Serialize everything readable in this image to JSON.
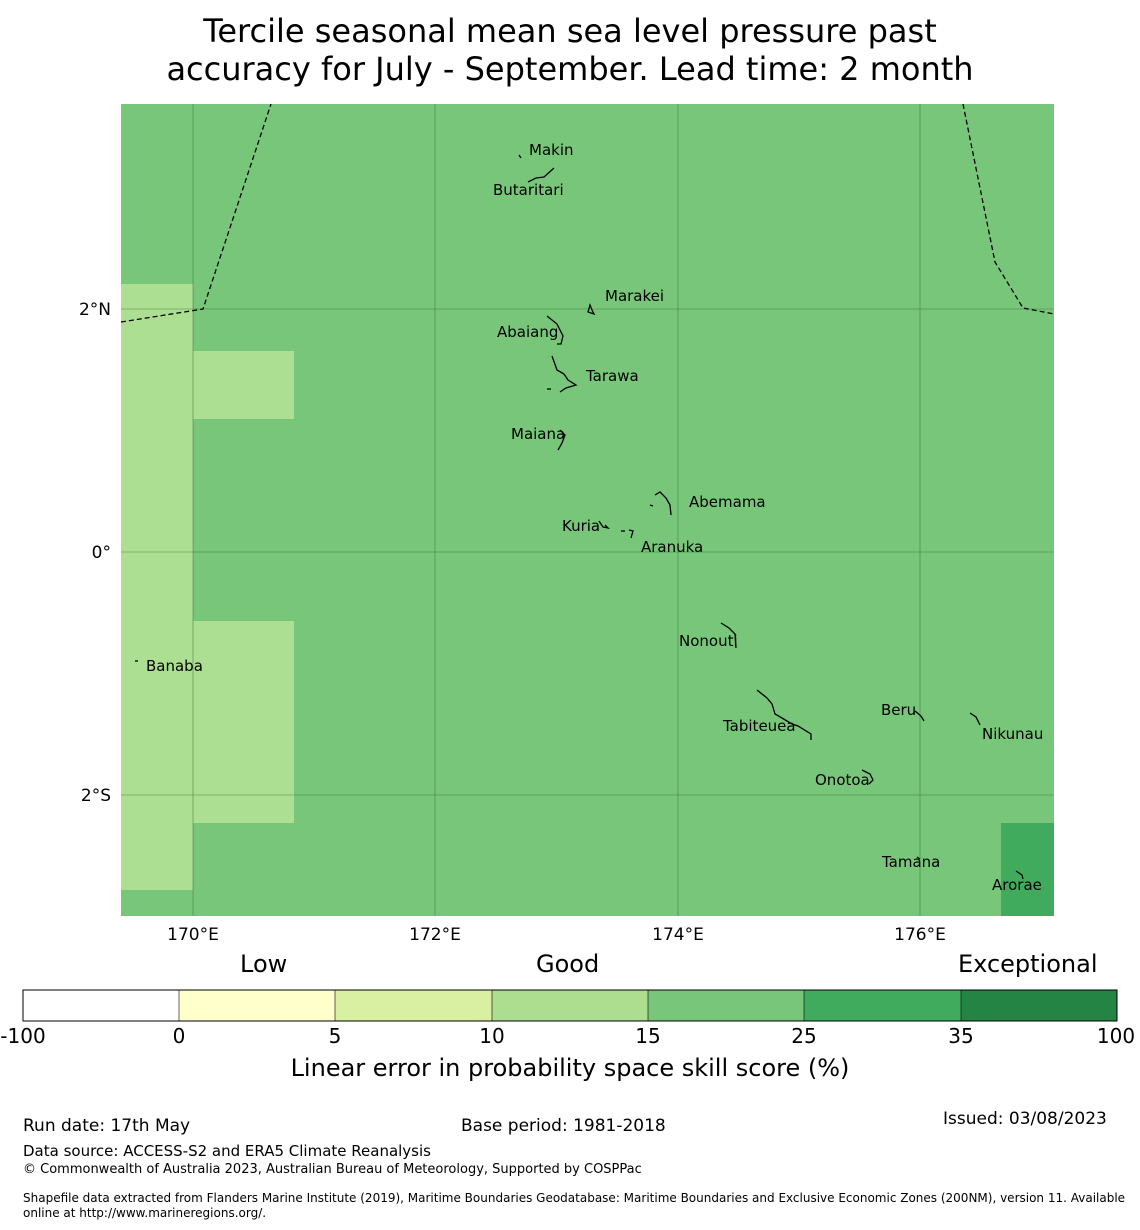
{
  "title_line1": "Tercile seasonal mean sea level pressure past",
  "title_line2": "accuracy for July - September. Lead time: 2 month",
  "map": {
    "lon_ticks": [
      "170°E",
      "172°E",
      "174°E",
      "176°E"
    ],
    "lat_ticks": [
      "2°N",
      "0°",
      "2°S"
    ],
    "islands": [
      "Makin",
      "Butaritari",
      "Marakei",
      "Abaiang",
      "Tarawa",
      "Maiana",
      "Abemama",
      "Kuria",
      "Aranuka",
      "Nonouti",
      "Banaba",
      "Tabiteuea",
      "Beru",
      "Nikunau",
      "Onotoa",
      "Tamana",
      "Arorae"
    ],
    "colors": {
      "c10_15": "#addf92",
      "c15_25": "#78c679",
      "c25_35": "#41ab5d"
    }
  },
  "colorbar": {
    "headings": [
      "Low",
      "Good",
      "Exceptional"
    ],
    "ticks": [
      "-100",
      "0",
      "5",
      "10",
      "15",
      "25",
      "35",
      "100"
    ],
    "colors": [
      "#ffffff",
      "#ffffcc",
      "#d9f0a3",
      "#addd8e",
      "#78c679",
      "#41ab5d",
      "#238443"
    ],
    "label": "Linear error in probability space skill score (%)"
  },
  "footer": {
    "run_date": "Run date: 17th May",
    "base_period": "Base period: 1981-2018",
    "issued": "Issued: 03/08/2023",
    "data_source": "Data source: ACCESS-S2 and ERA5 Climate Reanalysis",
    "copyright": "© Commonwealth of Australia 2023, Australian Bureau of Meteorology, Supported by COSPPac",
    "shapefile_line1": "Shapefile data extracted from Flanders Marine Institute (2019), Maritime Boundaries Geodatabase: Maritime Boundaries and Exclusive Economic Zones (200NM), version 11. Available",
    "shapefile_line2": "online at http://www.marineregions.org/."
  }
}
